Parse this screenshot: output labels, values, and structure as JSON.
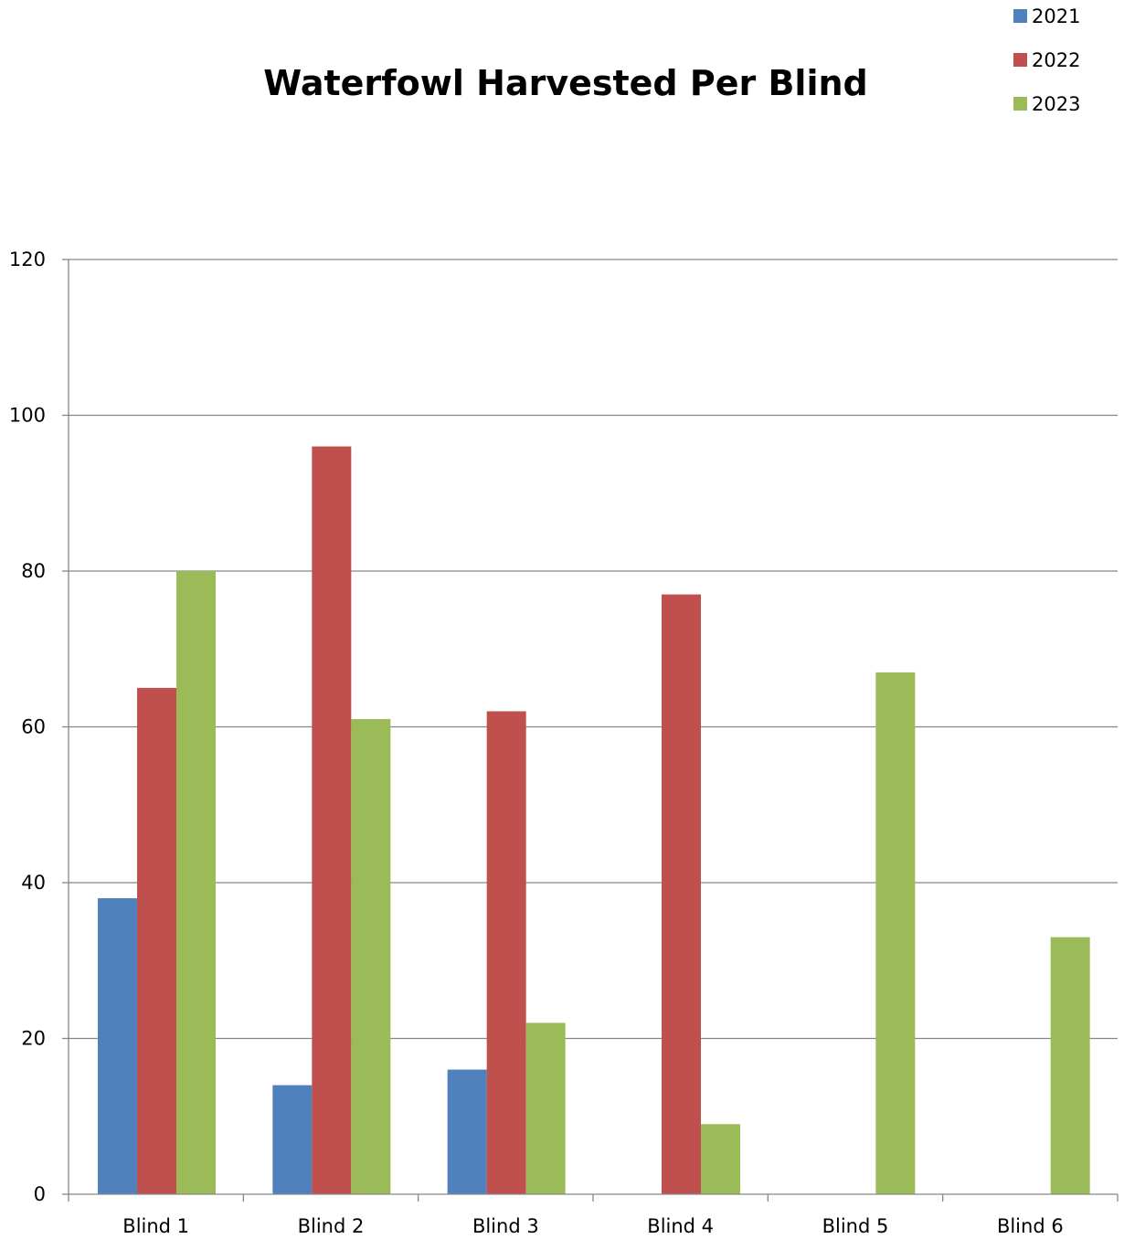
{
  "chart_data": {
    "type": "bar",
    "title": "Waterfowl Harvested Per Blind",
    "xlabel": "",
    "ylabel": "",
    "categories": [
      "Blind 1",
      "Blind 2",
      "Blind 3",
      "Blind 4",
      "Blind 5",
      "Blind 6"
    ],
    "series": [
      {
        "name": "2021",
        "color": "#4F81BD",
        "values": [
          38,
          14,
          16,
          0,
          0,
          0
        ]
      },
      {
        "name": "2022",
        "color": "#C0504D",
        "values": [
          65,
          96,
          62,
          77,
          0,
          0
        ]
      },
      {
        "name": "2023",
        "color": "#9BBB59",
        "values": [
          80,
          61,
          22,
          9,
          67,
          33
        ]
      }
    ],
    "ylim": [
      0,
      120
    ],
    "yticks": [
      0,
      20,
      40,
      60,
      80,
      100,
      120
    ],
    "grid": true,
    "legend": "top-right"
  }
}
